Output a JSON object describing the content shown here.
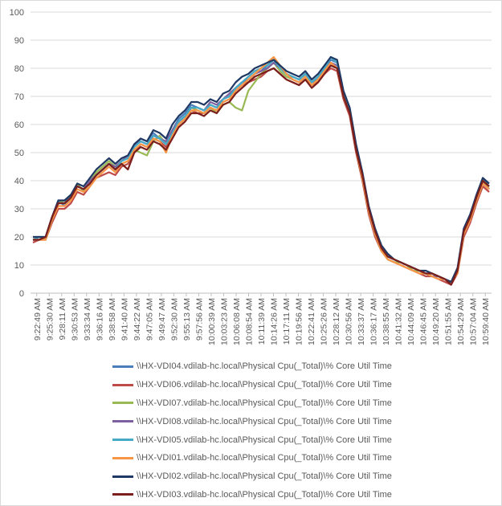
{
  "chart_data": {
    "type": "line",
    "title": "",
    "xlabel": "",
    "ylabel": "",
    "ylim": [
      0,
      100
    ],
    "yticks": [
      0,
      10,
      20,
      30,
      40,
      50,
      60,
      70,
      80,
      90,
      100
    ],
    "grid": "horizontal",
    "legend_position": "bottom",
    "x_tick_labels": [
      "9:22:49 AM",
      "9:25:30 AM",
      "9:28:11 AM",
      "9:30:53 AM",
      "9:33:34 AM",
      "9:36:16 AM",
      "9:38:58 AM",
      "9:41:40 AM",
      "9:44:22 AM",
      "9:47:05 AM",
      "9:49:47 AM",
      "9:52:30 AM",
      "9:55:13 AM",
      "9:57:56 AM",
      "10:00:39 AM",
      "10:03:23 AM",
      "10:06:08 AM",
      "10:08:54 AM",
      "10:11:39 AM",
      "10:14:26 AM",
      "10:17:11 AM",
      "10:19:56 AM",
      "10:22:41 AM",
      "10:25:26 AM",
      "10:28:12 AM",
      "10:30:56 AM",
      "10:33:37 AM",
      "10:36:17 AM",
      "10:38:55 AM",
      "10:41:32 AM",
      "10:44:09 AM",
      "10:46:45 AM",
      "10:49:20 AM",
      "10:51:55 AM",
      "10:54:29 AM",
      "10:57:04 AM",
      "10:59:40 AM"
    ],
    "x": [
      "9:22:49 AM",
      "9:24:10 AM",
      "9:25:30 AM",
      "9:26:50 AM",
      "9:28:11 AM",
      "9:29:32 AM",
      "9:30:53 AM",
      "9:32:13 AM",
      "9:33:34 AM",
      "9:34:55 AM",
      "9:36:16 AM",
      "9:37:37 AM",
      "9:38:58 AM",
      "9:40:19 AM",
      "9:41:40 AM",
      "9:43:01 AM",
      "9:44:22 AM",
      "9:45:43 AM",
      "9:47:05 AM",
      "9:48:26 AM",
      "9:49:47 AM",
      "9:51:08 AM",
      "9:52:30 AM",
      "9:53:51 AM",
      "9:55:13 AM",
      "9:56:34 AM",
      "9:57:56 AM",
      "9:59:17 AM",
      "10:00:39 AM",
      "10:02:01 AM",
      "10:03:23 AM",
      "10:04:45 AM",
      "10:06:08 AM",
      "10:07:31 AM",
      "10:08:54 AM",
      "10:10:16 AM",
      "10:11:39 AM",
      "10:13:02 AM",
      "10:14:26 AM",
      "10:15:48 AM",
      "10:17:11 AM",
      "10:18:33 AM",
      "10:19:56 AM",
      "10:21:18 AM",
      "10:22:41 AM",
      "10:24:03 AM",
      "10:25:26 AM",
      "10:26:49 AM",
      "10:28:12 AM",
      "10:29:34 AM",
      "10:30:56 AM",
      "10:32:16 AM",
      "10:33:37 AM",
      "10:34:57 AM",
      "10:36:17 AM",
      "10:37:36 AM",
      "10:38:55 AM",
      "10:40:13 AM",
      "10:41:32 AM",
      "10:42:50 AM",
      "10:44:09 AM",
      "10:45:27 AM",
      "10:46:45 AM",
      "10:48:02 AM",
      "10:49:20 AM",
      "10:50:37 AM",
      "10:51:55 AM",
      "10:53:12 AM",
      "10:54:29 AM",
      "10:55:46 AM",
      "10:57:04 AM",
      "10:58:22 AM",
      "10:59:40 AM"
    ],
    "series": [
      {
        "name": "\\\\HX-VDI04.vdilab-hc.local\\Physical Cpu(_Total)\\% Core Util Time",
        "color": "#4a7ebb",
        "values": [
          19,
          19,
          20,
          27,
          33,
          31,
          34,
          38,
          37,
          39,
          42,
          44,
          46,
          44,
          47,
          48,
          52,
          55,
          54,
          57,
          55,
          53,
          58,
          62,
          64,
          67,
          66,
          65,
          67,
          66,
          69,
          70,
          73,
          75,
          76,
          78,
          79,
          81,
          83,
          80,
          78,
          77,
          76,
          78,
          75,
          77,
          80,
          83,
          82,
          71,
          65,
          52,
          42,
          30,
          22,
          16,
          13,
          12,
          11,
          10,
          9,
          8,
          7,
          7,
          6,
          5,
          4,
          8,
          22,
          27,
          34,
          40,
          37
        ]
      },
      {
        "name": "\\\\HX-VDI06.vdilab-hc.local\\Physical Cpu(_Total)\\% Core Util Time",
        "color": "#be4b48",
        "values": [
          18,
          19,
          19,
          25,
          30,
          30,
          32,
          36,
          35,
          38,
          41,
          42,
          43,
          42,
          45,
          46,
          50,
          53,
          52,
          55,
          54,
          52,
          56,
          60,
          62,
          65,
          64,
          64,
          66,
          65,
          68,
          69,
          72,
          74,
          75,
          76,
          77,
          79,
          80,
          78,
          76,
          75,
          74,
          76,
          74,
          75,
          78,
          80,
          79,
          69,
          63,
          50,
          40,
          28,
          20,
          15,
          12,
          11,
          10,
          9,
          8,
          7,
          6,
          6,
          5,
          4,
          3,
          7,
          20,
          25,
          32,
          38,
          36
        ]
      },
      {
        "name": "\\\\HX-VDI07.vdilab-hc.local\\Physical Cpu(_Total)\\% Core Util Time",
        "color": "#98b954",
        "values": [
          20,
          20,
          19,
          26,
          32,
          33,
          35,
          39,
          36,
          40,
          43,
          45,
          47,
          45,
          46,
          47,
          51,
          50,
          49,
          54,
          56,
          53,
          57,
          61,
          63,
          66,
          65,
          64,
          66,
          64,
          67,
          68,
          66,
          65,
          72,
          75,
          78,
          80,
          82,
          79,
          77,
          76,
          75,
          77,
          74,
          76,
          79,
          81,
          80,
          70,
          64,
          51,
          41,
          29,
          21,
          15,
          12,
          11,
          11,
          10,
          8,
          8,
          7,
          6,
          6,
          5,
          4,
          8,
          21,
          26,
          33,
          39,
          38
        ]
      },
      {
        "name": "\\\\HX-VDI08.vdilab-hc.local\\Physical Cpu(_Total)\\% Core Util Time",
        "color": "#7d60a0",
        "values": [
          19,
          19,
          20,
          26,
          32,
          32,
          34,
          38,
          37,
          40,
          42,
          44,
          46,
          45,
          47,
          49,
          53,
          54,
          53,
          56,
          55,
          54,
          58,
          61,
          63,
          66,
          66,
          65,
          68,
          67,
          69,
          71,
          73,
          75,
          76,
          78,
          79,
          80,
          82,
          80,
          78,
          76,
          75,
          77,
          75,
          76,
          79,
          82,
          81,
          70,
          64,
          51,
          42,
          29,
          21,
          15,
          13,
          12,
          11,
          10,
          9,
          8,
          7,
          6,
          6,
          5,
          4,
          8,
          21,
          26,
          33,
          39,
          37
        ]
      },
      {
        "name": "\\\\HX-VDI05.vdilab-hc.local\\Physical Cpu(_Total)\\% Core Util Time",
        "color": "#46aac5",
        "values": [
          19,
          20,
          20,
          27,
          32,
          32,
          35,
          38,
          37,
          39,
          42,
          44,
          46,
          44,
          47,
          48,
          52,
          54,
          53,
          56,
          55,
          53,
          57,
          61,
          63,
          66,
          66,
          65,
          67,
          66,
          69,
          70,
          73,
          75,
          77,
          79,
          80,
          81,
          83,
          80,
          78,
          77,
          76,
          78,
          75,
          77,
          80,
          84,
          82,
          71,
          65,
          52,
          42,
          30,
          22,
          16,
          13,
          12,
          11,
          10,
          9,
          8,
          7,
          7,
          6,
          5,
          4,
          8,
          22,
          27,
          34,
          41,
          38
        ]
      },
      {
        "name": "\\\\HX-VDI01.vdilab-hc.local\\Physical Cpu(_Total)\\% Core Util Time",
        "color": "#f79646",
        "values": [
          19,
          19,
          19,
          26,
          31,
          31,
          33,
          37,
          36,
          38,
          41,
          43,
          45,
          43,
          46,
          47,
          51,
          53,
          52,
          55,
          54,
          50,
          56,
          60,
          62,
          65,
          65,
          64,
          66,
          65,
          68,
          69,
          72,
          74,
          76,
          78,
          80,
          82,
          84,
          81,
          78,
          76,
          75,
          77,
          74,
          76,
          79,
          82,
          80,
          70,
          64,
          51,
          41,
          29,
          21,
          15,
          12,
          11,
          10,
          9,
          8,
          7,
          7,
          6,
          5,
          5,
          4,
          7,
          21,
          26,
          33,
          39,
          37
        ]
      },
      {
        "name": "\\\\HX-VDI02.vdilab-hc.local\\Physical Cpu(_Total)\\% Core Util Time",
        "color": "#1f3864",
        "values": [
          20,
          20,
          20,
          27,
          33,
          33,
          35,
          39,
          38,
          41,
          44,
          46,
          48,
          46,
          48,
          49,
          53,
          55,
          54,
          58,
          57,
          55,
          60,
          63,
          65,
          68,
          68,
          67,
          69,
          68,
          71,
          72,
          75,
          77,
          78,
          80,
          81,
          82,
          83,
          81,
          79,
          78,
          77,
          79,
          76,
          78,
          81,
          84,
          83,
          72,
          66,
          53,
          43,
          31,
          23,
          17,
          14,
          12,
          11,
          10,
          9,
          8,
          8,
          7,
          6,
          5,
          4,
          9,
          23,
          28,
          35,
          41,
          39
        ]
      },
      {
        "name": "\\\\HX-VDI03.vdilab-hc.local\\Physical Cpu(_Total)\\% Core Util Time",
        "color": "#7b1f1c",
        "values": [
          19,
          19,
          20,
          27,
          32,
          32,
          34,
          38,
          37,
          39,
          42,
          44,
          46,
          44,
          46,
          44,
          50,
          52,
          51,
          54,
          53,
          51,
          55,
          59,
          61,
          64,
          64,
          63,
          65,
          64,
          67,
          68,
          71,
          73,
          75,
          77,
          78,
          79,
          80,
          78,
          76,
          75,
          74,
          76,
          73,
          75,
          78,
          81,
          80,
          70,
          64,
          51,
          42,
          30,
          22,
          16,
          13,
          12,
          11,
          10,
          9,
          8,
          7,
          7,
          6,
          5,
          3,
          8,
          22,
          27,
          34,
          40,
          38
        ]
      }
    ]
  }
}
